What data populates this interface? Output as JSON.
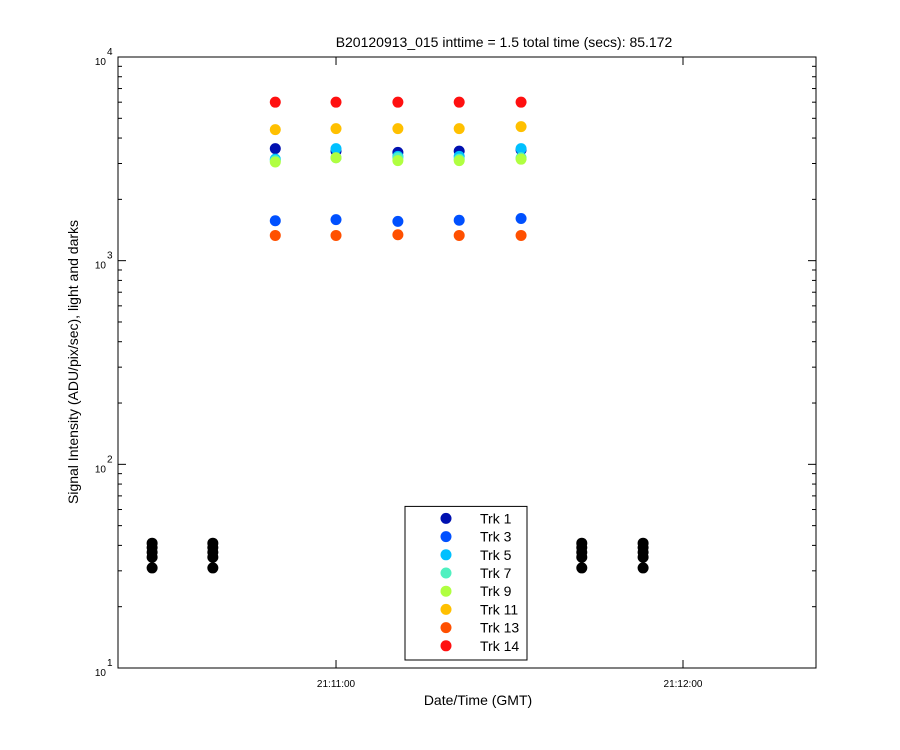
{
  "chart_data": {
    "type": "scatter",
    "title": "B20120913_015 inttime = 1.5 total time (secs): 85.172",
    "xlabel": "Date/Time (GMT)",
    "ylabel": "Signal Intensity (ADU/pix/sec), light and darks",
    "ylog": true,
    "xlim": [
      75022.3,
      75143
    ],
    "xticks": [
      {
        "value": 75060,
        "label": "21:11:00"
      },
      {
        "value": 75120,
        "label": "21:12:00"
      }
    ],
    "ylim": [
      10,
      10000
    ],
    "yticks": [
      {
        "value": 10,
        "label": "10",
        "sup": "1"
      },
      {
        "value": 100,
        "label": "10",
        "sup": "2"
      },
      {
        "value": 1000,
        "label": "10",
        "sup": "3"
      },
      {
        "value": 10000,
        "label": "10",
        "sup": "4"
      }
    ],
    "yminorticks": [
      20,
      30,
      40,
      50,
      60,
      70,
      80,
      90,
      200,
      300,
      400,
      500,
      600,
      700,
      800,
      900,
      2000,
      3000,
      4000,
      5000,
      6000,
      7000,
      8000,
      9000
    ],
    "legend": "lower center",
    "series": [
      {
        "color": "#000000",
        "x": [
          75028.2,
          75028.2,
          75028.2,
          75028.2,
          75028.2,
          75038.7,
          75038.7,
          75038.7,
          75038.7,
          75038.7,
          75102.5,
          75102.5,
          75102.5,
          75102.5,
          75102.5,
          75113.1,
          75113.1,
          75113.1,
          75113.1,
          75113.1
        ],
        "values": [
          31,
          35,
          37,
          39,
          41,
          31,
          35,
          37,
          39,
          41,
          31,
          35,
          37,
          39,
          41,
          31,
          35,
          37,
          39,
          41
        ]
      },
      {
        "name": "Trk 1",
        "color": "#0010b0",
        "x": [
          75049.5,
          75060,
          75070.7,
          75081.3,
          75092
        ],
        "values": [
          3550,
          3450,
          3400,
          3450,
          3500
        ]
      },
      {
        "name": "Trk 3",
        "color": "#0050ff",
        "x": [
          75049.5,
          75060,
          75070.7,
          75081.3,
          75092
        ],
        "values": [
          1570,
          1590,
          1560,
          1580,
          1610
        ]
      },
      {
        "name": "Trk 5",
        "color": "#00c0ff",
        "x": [
          75049.5,
          75060,
          75070.7,
          75081.3,
          75092
        ],
        "values": [
          3150,
          3550,
          3250,
          3250,
          3550
        ]
      },
      {
        "name": "Trk 7",
        "color": "#50f0c0",
        "x": [
          75049.5,
          75060,
          75070.7,
          75081.3,
          75092
        ],
        "values": [
          3100,
          3200,
          3200,
          3150,
          3200
        ]
      },
      {
        "name": "Trk 9",
        "color": "#b0ff40",
        "x": [
          75049.5,
          75060,
          75070.7,
          75081.3,
          75092
        ],
        "values": [
          3050,
          3200,
          3100,
          3100,
          3150
        ]
      },
      {
        "name": "Trk 11",
        "color": "#ffc000",
        "x": [
          75049.5,
          75060,
          75070.7,
          75081.3,
          75092
        ],
        "values": [
          4400,
          4450,
          4450,
          4450,
          4550
        ]
      },
      {
        "name": "Trk 13",
        "color": "#ff5000",
        "x": [
          75049.5,
          75060,
          75070.7,
          75081.3,
          75092
        ],
        "values": [
          1330,
          1330,
          1340,
          1330,
          1330
        ]
      },
      {
        "name": "Trk 14",
        "color": "#ff1010",
        "x": [
          75049.5,
          75060,
          75070.7,
          75081.3,
          75092
        ],
        "values": [
          6000,
          6000,
          6000,
          6000,
          6000
        ]
      }
    ]
  }
}
